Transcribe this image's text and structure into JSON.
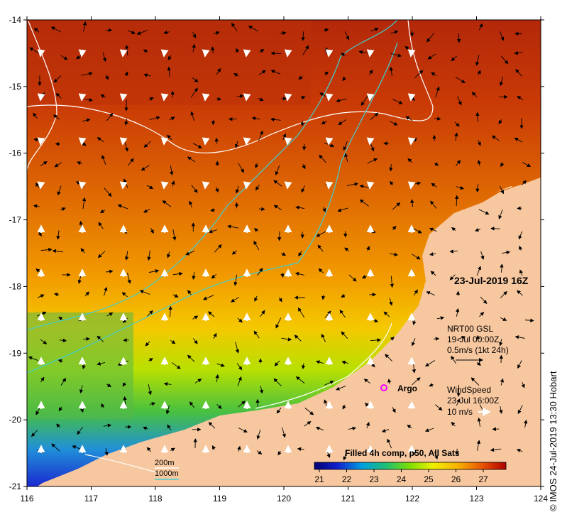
{
  "map": {
    "lon_ticks": [
      "116",
      "117",
      "118",
      "119",
      "120",
      "121",
      "122",
      "123",
      "124"
    ],
    "lat_ticks": [
      "-14",
      "-15",
      "-16",
      "-17",
      "-18",
      "-19",
      "-20",
      "-21"
    ],
    "timestamp": "23-Jul-2019 16Z",
    "current_title": "NRT00 GSL",
    "current_date": "19-Jul 00:00Z",
    "current_scale": "0.5m/s (1kt 24h)",
    "wind_title": "WindSpeed",
    "wind_date": "23-Jul 16:00Z",
    "wind_scale": "10 m/s",
    "argo_label": "Argo",
    "isobath_200": "200m",
    "isobath_1000": "1000m",
    "colorbar_title": "Filled 4h comp, p50, All Sats",
    "colorbar_ticks": [
      "21",
      "22",
      "23",
      "24",
      "25",
      "26",
      "27"
    ],
    "credit": "© IMOS 24-Jul-2019 13:30 Hobart"
  },
  "colors": {
    "land": "#f7c79f",
    "isobath_200": "#ffffff",
    "isobath_1000": "#40d0d0",
    "argo": "#ff00ff",
    "arrow_current": "#000000",
    "arrow_wind": "#ffffff"
  }
}
